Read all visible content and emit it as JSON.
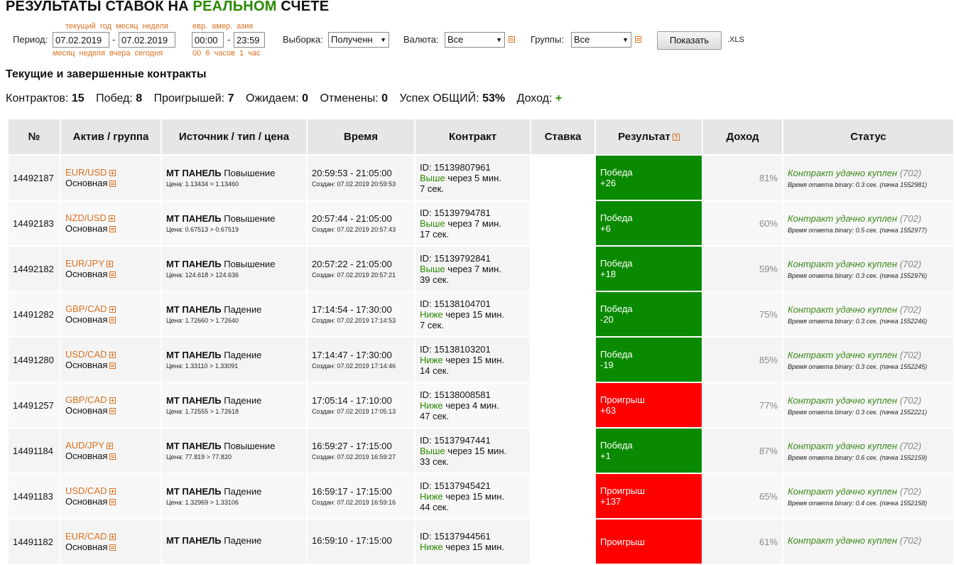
{
  "page": {
    "title_prefix": "РЕЗУЛЬТАТЫ СТАВОК НА ",
    "title_accent": "РЕАЛЬНОМ",
    "title_suffix": " СЧЕТЕ",
    "accent_color": "#2a8a00"
  },
  "filters": {
    "period_label": "Период:",
    "date_from": "07.02.2019",
    "date_to": "07.02.2019",
    "date_dash": "-",
    "quick_top": "текущий год  месяц  неделя",
    "quick_bottom": "месяц  неделя  вчера  сегодня",
    "session_top": "евр.  амер.  азия",
    "time_from": "00:00",
    "time_to": "23:59",
    "time_dash": "-",
    "time_quick": "00  6 часов  1 час",
    "sample_label": "Выборка:",
    "sample_value": "Полученн",
    "currency_label": "Валюта:",
    "currency_value": "Все",
    "groups_label": "Группы:",
    "groups_value": "Все",
    "show_button": "Показать",
    "xls_link": ".XLS",
    "arrow": "▼"
  },
  "section": {
    "subtitle": "Текущие и завершенные контракты"
  },
  "stats": {
    "contracts_label": "Контрактов:",
    "contracts_value": "15",
    "wins_label": "Побед:",
    "wins_value": "8",
    "losses_label": "Проигрышей:",
    "losses_value": "7",
    "pending_label": "Ожидаем:",
    "pending_value": "0",
    "cancelled_label": "Отменены:",
    "cancelled_value": "0",
    "success_label": "Успех ОБЩИЙ:",
    "success_value": "53%",
    "income_label": "Доход:",
    "income_value": "+"
  },
  "table": {
    "headers": [
      "№",
      "Актив / группа",
      "Источник / тип / цена",
      "Время",
      "Контракт",
      "Ставка",
      "Результат",
      "Доход",
      "Статус"
    ],
    "rows": [
      {
        "id": "14492187",
        "asset": "EUR/USD",
        "group": "Основная",
        "src": "MT ПАНЕЛЬ",
        "dir": "Повышение",
        "price": "Цена: 1.13434 > 1.13460",
        "time": "20:59:53 - 21:05:00",
        "created": "Создан: 07.02.2019 20:59:53",
        "cid": "ID: 15139807961",
        "cdir": "Выше",
        "cdur": " через 5 мин.",
        "cdur2": "7 сек.",
        "res": "Победа",
        "resval": "+26",
        "win": true,
        "pct": "81%",
        "status": "Контракт удачно куплен",
        "code": "(702)",
        "resp": "Время ответа binary: 0.3 сек. (пачка 1552981)"
      },
      {
        "id": "14492183",
        "asset": "NZD/USD",
        "group": "Основная",
        "src": "MT ПАНЕЛЬ",
        "dir": "Повышение",
        "price": "Цена: 0.67513 > 0.67519",
        "time": "20:57:44 - 21:05:00",
        "created": "Создан: 07.02.2019 20:57:43",
        "cid": "ID: 15139794781",
        "cdir": "Выше",
        "cdur": " через 7 мин.",
        "cdur2": "17 сек.",
        "res": "Победа",
        "resval": "+6",
        "win": true,
        "pct": "60%",
        "status": "Контракт удачно куплен",
        "code": "(702)",
        "resp": "Время ответа binary: 0.5 сек. (пачка 1552977)"
      },
      {
        "id": "14492182",
        "asset": "EUR/JPY",
        "group": "Основная",
        "src": "MT ПАНЕЛЬ",
        "dir": "Повышение",
        "price": "Цена: 124.618 > 124.636",
        "time": "20:57:22 - 21:05:00",
        "created": "Создан: 07.02.2019 20:57:21",
        "cid": "ID: 15139792841",
        "cdir": "Выше",
        "cdur": " через 7 мин.",
        "cdur2": "39 сек.",
        "res": "Победа",
        "resval": "+18",
        "win": true,
        "pct": "59%",
        "status": "Контракт удачно куплен",
        "code": "(702)",
        "resp": "Время ответа binary: 0.3 сек. (пачка 1552976)"
      },
      {
        "id": "14491282",
        "asset": "GBP/CAD",
        "group": "Основная",
        "src": "MT ПАНЕЛЬ",
        "dir": "Падение",
        "price": "Цена: 1.72660 > 1.72640",
        "time": "17:14:54 - 17:30:00",
        "created": "Создан: 07.02.2019 17:14:53",
        "cid": "ID: 15138104701",
        "cdir": "Ниже",
        "cdur": " через 15 мин.",
        "cdur2": "7 сек.",
        "res": "Победа",
        "resval": "-20",
        "win": true,
        "pct": "75%",
        "status": "Контракт удачно куплен",
        "code": "(702)",
        "resp": "Время ответа binary: 0.3 сек. (пачка 1552246)"
      },
      {
        "id": "14491280",
        "asset": "USD/CAD",
        "group": "Основная",
        "src": "MT ПАНЕЛЬ",
        "dir": "Падение",
        "price": "Цена: 1.33110 > 1.33091",
        "time": "17:14:47 - 17:30:00",
        "created": "Создан: 07.02.2019 17:14:46",
        "cid": "ID: 15138103201",
        "cdir": "Ниже",
        "cdur": " через 15 мин.",
        "cdur2": "14 сек.",
        "res": "Победа",
        "resval": "-19",
        "win": true,
        "pct": "85%",
        "status": "Контракт удачно куплен",
        "code": "(702)",
        "resp": "Время ответа binary: 0.3 сек. (пачка 1552245)"
      },
      {
        "id": "14491257",
        "asset": "GBP/CAD",
        "group": "Основная",
        "src": "MT ПАНЕЛЬ",
        "dir": "Падение",
        "price": "Цена: 1.72555 > 1.72618",
        "time": "17:05:14 - 17:10:00",
        "created": "Создан: 07.02.2019 17:05:13",
        "cid": "ID: 15138008581",
        "cdir": "Ниже",
        "cdur": " через 4 мин.",
        "cdur2": "47 сек.",
        "res": "Проигрыш",
        "resval": "+63",
        "win": false,
        "pct": "77%",
        "status": "Контракт удачно куплен",
        "code": "(702)",
        "resp": "Время ответа binary: 0.3 сек. (пачка 1552221)"
      },
      {
        "id": "14491184",
        "asset": "AUD/JPY",
        "group": "Основная",
        "src": "MT ПАНЕЛЬ",
        "dir": "Повышение",
        "price": "Цена: 77.819 > 77.820",
        "time": "16:59:27 - 17:15:00",
        "created": "Создан: 07.02.2019 16:59:27",
        "cid": "ID: 15137947441",
        "cdir": "Выше",
        "cdur": " через 15 мин.",
        "cdur2": "33 сек.",
        "res": "Победа",
        "resval": "+1",
        "win": true,
        "pct": "87%",
        "status": "Контракт удачно куплен",
        "code": "(702)",
        "resp": "Время ответа binary: 0.6 сек. (пачка 1552159)"
      },
      {
        "id": "14491183",
        "asset": "USD/CAD",
        "group": "Основная",
        "src": "MT ПАНЕЛЬ",
        "dir": "Падение",
        "price": "Цена: 1.32969 > 1.33106",
        "time": "16:59:17 - 17:15:00",
        "created": "Создан: 07.02.2019 16:59:16",
        "cid": "ID: 15137945421",
        "cdir": "Ниже",
        "cdur": " через 15 мин.",
        "cdur2": "44 сек.",
        "res": "Проигрыш",
        "resval": "+137",
        "win": false,
        "pct": "65%",
        "status": "Контракт удачно куплен",
        "code": "(702)",
        "resp": "Время ответа binary: 0.4 сек. (пачка 1552158)"
      },
      {
        "id": "14491182",
        "asset": "EUR/CAD",
        "group": "Основная",
        "src": "MT ПАНЕЛЬ",
        "dir": "Падение",
        "price": "",
        "time": "16:59:10 - 17:15:00",
        "created": "",
        "cid": "ID: 15137944561",
        "cdir": "Ниже",
        "cdur": " через 15 мин.",
        "cdur2": "",
        "res": "Проигрыш",
        "resval": "",
        "win": false,
        "pct": "61%",
        "status": "Контракт удачно куплен",
        "code": "(702)",
        "resp": ""
      }
    ]
  }
}
